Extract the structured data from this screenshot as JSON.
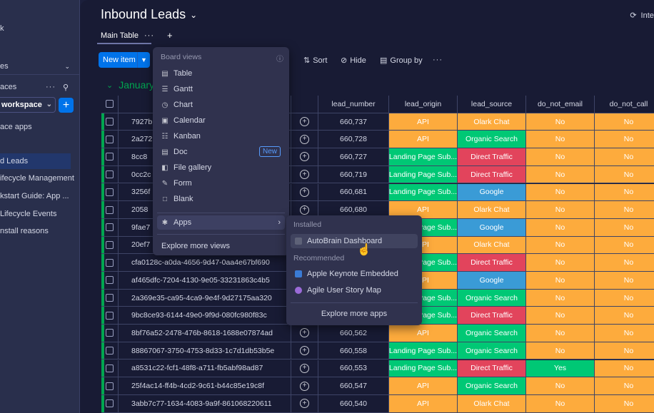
{
  "sidebar": {
    "items": [
      {
        "label": "k"
      },
      {
        "label": "es"
      },
      {
        "label": "aces"
      },
      {
        "label": "workspace"
      },
      {
        "label": "ace apps"
      },
      {
        "label": "d Leads"
      },
      {
        "label": "ifecycle Management"
      },
      {
        "label": "kstart Guide: App ..."
      },
      {
        "label": "Lifecycle Events"
      },
      {
        "label": "nstall reasons"
      }
    ]
  },
  "header": {
    "title": "Inbound Leads",
    "integrate_label": "Integ",
    "tab_main": "Main Table"
  },
  "toolbar": {
    "new_item": "New item",
    "sort": "Sort",
    "hide": "Hide",
    "group_by": "Group by"
  },
  "group": {
    "title": "January"
  },
  "table": {
    "columns": [
      "lead_number",
      "lead_origin",
      "lead_source",
      "do_not_email",
      "do_not_call"
    ],
    "rows": [
      {
        "name": "7927b",
        "num": "660,737",
        "origin": "API",
        "source": "Olark Chat",
        "email": "No",
        "call": "No"
      },
      {
        "name": "2a272",
        "num": "660,728",
        "origin": "API",
        "source": "Organic Search",
        "email": "No",
        "call": "No"
      },
      {
        "name": "8cc8",
        "num": "660,727",
        "origin": "Landing Page Sub...",
        "source": "Direct Traffic",
        "email": "No",
        "call": "No"
      },
      {
        "name": "0cc2c",
        "num": "660,719",
        "origin": "Landing Page Sub...",
        "source": "Direct Traffic",
        "email": "No",
        "call": "No"
      },
      {
        "name": "3256f",
        "num": "660,681",
        "origin": "Landing Page Sub...",
        "source": "Google",
        "email": "No",
        "call": "No"
      },
      {
        "name": "2058",
        "num": "660,680",
        "origin": "API",
        "source": "Olark Chat",
        "email": "No",
        "call": "No"
      },
      {
        "name": "9fae7",
        "num": "",
        "origin": "Landing Page Sub...",
        "source": "Google",
        "email": "No",
        "call": "No"
      },
      {
        "name": "20ef7",
        "num": "",
        "origin": "API",
        "source": "Olark Chat",
        "email": "No",
        "call": "No"
      },
      {
        "name": "cfa0128c-a0da-4656-9d47-0aa4e67bf690",
        "num": "",
        "origin": "Landing Page Sub...",
        "source": "Direct Traffic",
        "email": "No",
        "call": "No"
      },
      {
        "name": "af465dfc-7204-4130-9e05-33231863c4b5",
        "num": "",
        "origin": "API",
        "source": "Google",
        "email": "No",
        "call": "No"
      },
      {
        "name": "2a369e35-ca95-4ca9-9e4f-9d27175aa320",
        "num": "",
        "origin": "Landing Page Sub...",
        "source": "Organic Search",
        "email": "No",
        "call": "No"
      },
      {
        "name": "9bc8ce93-6144-49e0-9f9d-080fc980f83c",
        "num": "",
        "origin": "Landing Page Sub...",
        "source": "Direct Traffic",
        "email": "No",
        "call": "No"
      },
      {
        "name": "8bf76a52-2478-476b-8618-1688e07874ad",
        "num": "660,562",
        "origin": "API",
        "source": "Organic Search",
        "email": "No",
        "call": "No"
      },
      {
        "name": "88867067-3750-4753-8d33-1c7d1db53b5e",
        "num": "660,558",
        "origin": "Landing Page Sub...",
        "source": "Organic Search",
        "email": "No",
        "call": "No"
      },
      {
        "name": "a8531c22-fcf1-48f8-a711-fb5abf98ad87",
        "num": "660,553",
        "origin": "Landing Page Sub...",
        "source": "Direct Traffic",
        "email": "Yes",
        "call": "No"
      },
      {
        "name": "25f4ac14-ff4b-4cd2-9c61-b44c85e19c8f",
        "num": "660,547",
        "origin": "API",
        "source": "Organic Search",
        "email": "No",
        "call": "No"
      },
      {
        "name": "3abb7c77-1634-4083-9a9f-861068220611",
        "num": "660,540",
        "origin": "API",
        "source": "Olark Chat",
        "email": "No",
        "call": "No"
      }
    ]
  },
  "colors": {
    "API": "#fdab3d",
    "Landing Page Sub...": "#00c875",
    "Olark Chat": "#fdab3d",
    "Organic Search": "#00c875",
    "Direct Traffic": "#e2445c",
    "Google": "#3a9bd6",
    "No": "#fdab3d",
    "Yes": "#00c875"
  },
  "board_views_menu": {
    "header": "Board views",
    "items": [
      "Table",
      "Gantt",
      "Chart",
      "Calendar",
      "Kanban",
      "Doc",
      "File gallery",
      "Form",
      "Blank"
    ],
    "new_badge": "New",
    "apps": "Apps",
    "explore": "Explore more views"
  },
  "apps_menu": {
    "installed_header": "Installed",
    "installed_item": "AutoBrain Dashboard",
    "recommended_header": "Recommended",
    "recommended": [
      "Apple Keynote Embedded",
      "Agile User Story Map"
    ],
    "explore": "Explore more apps"
  }
}
